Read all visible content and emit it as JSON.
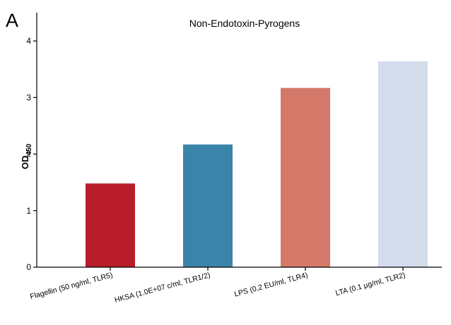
{
  "panel_label": "A",
  "chart_data": {
    "type": "bar",
    "title": "Non-Endotoxin-Pyrogens",
    "ylabel": "OD",
    "ylabel_subscript": "450",
    "xlabel": "",
    "categories": [
      "Flagellin (50 ng/ml, TLR5)",
      "HKSA (1.0E+07 c/ml, TLR1/2)",
      "LPS (0,2 EU/ml, TLR4)",
      "LTA (0.1 µg/ml, TLR2)"
    ],
    "values": [
      1.48,
      2.17,
      3.17,
      3.64
    ],
    "colors": [
      "#b81d29",
      "#3a84aa",
      "#d4796a",
      "#d3dcea"
    ],
    "ylim": [
      0,
      4.5
    ],
    "yticks": [
      0,
      1,
      2,
      3,
      4
    ],
    "grid": false,
    "legend": "none"
  }
}
